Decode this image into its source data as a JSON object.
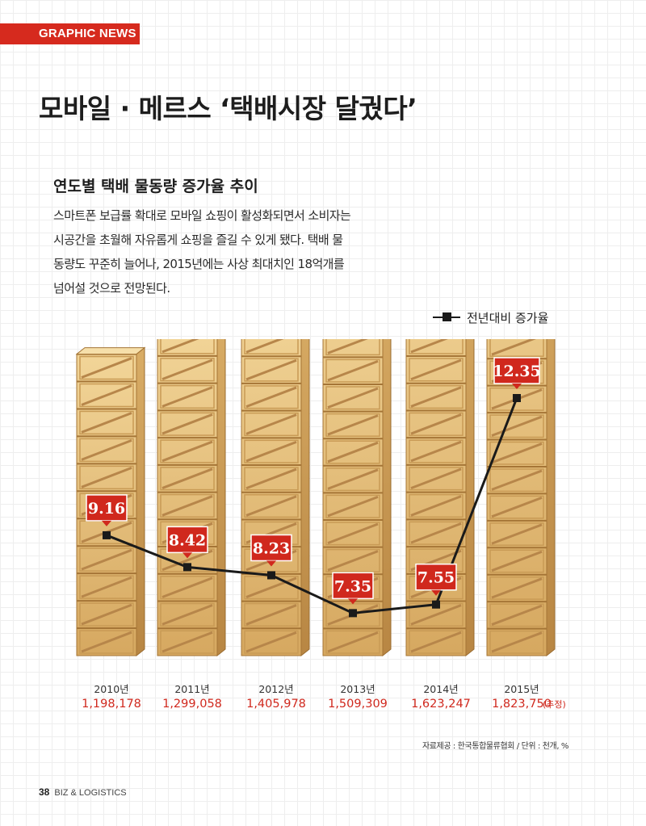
{
  "header": {
    "tag": "GRAPHIC NEWS",
    "title": "모바일 · 메르스 ‘택배시장 달궜다’"
  },
  "article": {
    "subtitle": "연도별 택배 물동량 증가율 추이",
    "description": "스마트폰 보급률 확대로 모바일 쇼핑이 활성화되면서 소비자는 시공간을 초월해 자유롭게 쇼핑을 즐길 수 있게 됐다. 택배 물동량도 꾸준히 늘어나, 2015년에는 사상 최대치인 18억개를 넘어설 것으로 전망된다."
  },
  "chart_data": {
    "type": "bar",
    "categories": [
      "2010년",
      "2011년",
      "2012년",
      "2013년",
      "2014년",
      "2015년"
    ],
    "series": [
      {
        "name": "",
        "values": [
          1198178,
          1299058,
          1405978,
          1509309,
          1623247,
          1823750
        ],
        "value_labels": [
          "1,198,178",
          "1,299,058",
          "1,405,978",
          "1,509,309",
          "1,623,247",
          "1,823,750"
        ]
      },
      {
        "name": "전년대비 증가율",
        "type": "line",
        "values": [
          9.16,
          8.42,
          8.23,
          7.35,
          7.55,
          12.35
        ],
        "value_labels": [
          "9.16",
          "8.42",
          "8.23",
          "7.35",
          "7.55",
          "12.35"
        ]
      }
    ],
    "legend": "top-right",
    "estimate_note": "(추정)",
    "colors": {
      "bar_value": "#d0281d",
      "rate_label_bg": "#d0281d",
      "rate_line": "#1a1a1a"
    }
  },
  "source": "자료제공 : 한국통합물류협회 / 단위 : 천개, %",
  "footer": {
    "page": "38",
    "magazine": "BIZ & LOGISTICS"
  }
}
